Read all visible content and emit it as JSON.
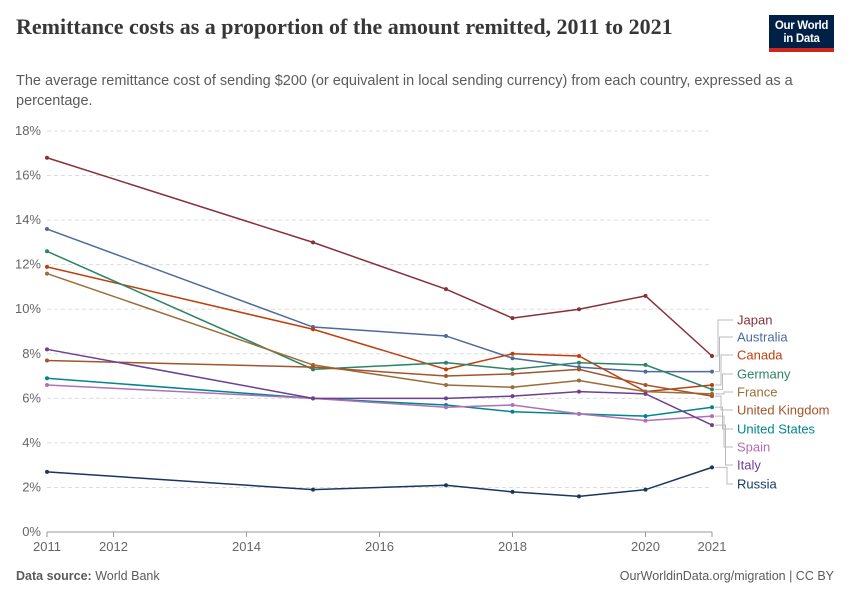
{
  "header": {
    "title": "Remittance costs as a proportion of the amount remitted, 2011 to 2021",
    "subtitle": "The average remittance cost of sending $200 (or equivalent in local sending currency) from each country, expressed as a percentage.",
    "logo": "Our World in Data"
  },
  "footer": {
    "source_label": "Data source:",
    "source": "World Bank",
    "credit": "OurWorldinData.org/migration | CC BY"
  },
  "chart_data": {
    "type": "line",
    "title": "Remittance costs as a proportion of the amount remitted, 2011 to 2021",
    "x": [
      2011,
      2015,
      2017,
      2018,
      2019,
      2020,
      2021
    ],
    "xlim": [
      2011,
      2021
    ],
    "ylim": [
      0,
      18
    ],
    "x_ticks": [
      "2011",
      "2012",
      "2014",
      "2016",
      "2018",
      "2020",
      "2021"
    ],
    "y_ticks": [
      "0%",
      "2%",
      "4%",
      "6%",
      "8%",
      "10%",
      "12%",
      "14%",
      "16%",
      "18%"
    ],
    "grid": "horizontal dashed",
    "legend": "right (line labels)",
    "series": [
      {
        "name": "Japan",
        "color": "#883039",
        "values": [
          16.8,
          13.0,
          10.9,
          9.6,
          10.0,
          10.6,
          7.9
        ]
      },
      {
        "name": "Australia",
        "color": "#4c6a9c",
        "values": [
          13.6,
          9.2,
          8.8,
          7.8,
          7.4,
          7.2,
          7.2
        ]
      },
      {
        "name": "Canada",
        "color": "#c13e0a",
        "values": [
          11.9,
          9.1,
          7.3,
          8.0,
          7.9,
          6.3,
          6.6
        ]
      },
      {
        "name": "Germany",
        "color": "#2c8465",
        "values": [
          12.6,
          7.3,
          7.6,
          7.3,
          7.6,
          7.5,
          6.4
        ]
      },
      {
        "name": "France",
        "color": "#996d39",
        "values": [
          11.6,
          7.5,
          6.6,
          6.5,
          6.8,
          6.3,
          6.2
        ]
      },
      {
        "name": "United Kingdom",
        "color": "#a2552a",
        "values": [
          7.7,
          7.4,
          7.0,
          7.1,
          7.3,
          6.6,
          6.1
        ]
      },
      {
        "name": "United States",
        "color": "#00868e",
        "values": [
          6.9,
          6.0,
          5.7,
          5.4,
          5.3,
          5.2,
          5.6
        ]
      },
      {
        "name": "Spain",
        "color": "#b16fb6",
        "values": [
          6.6,
          6.0,
          5.6,
          5.7,
          5.3,
          5.0,
          5.2
        ]
      },
      {
        "name": "Italy",
        "color": "#6d3e91",
        "values": [
          8.2,
          6.0,
          6.0,
          6.1,
          6.3,
          6.2,
          4.8
        ]
      },
      {
        "name": "Russia",
        "color": "#18375f",
        "values": [
          2.7,
          1.9,
          2.1,
          1.8,
          1.6,
          1.9,
          2.9
        ]
      }
    ]
  }
}
